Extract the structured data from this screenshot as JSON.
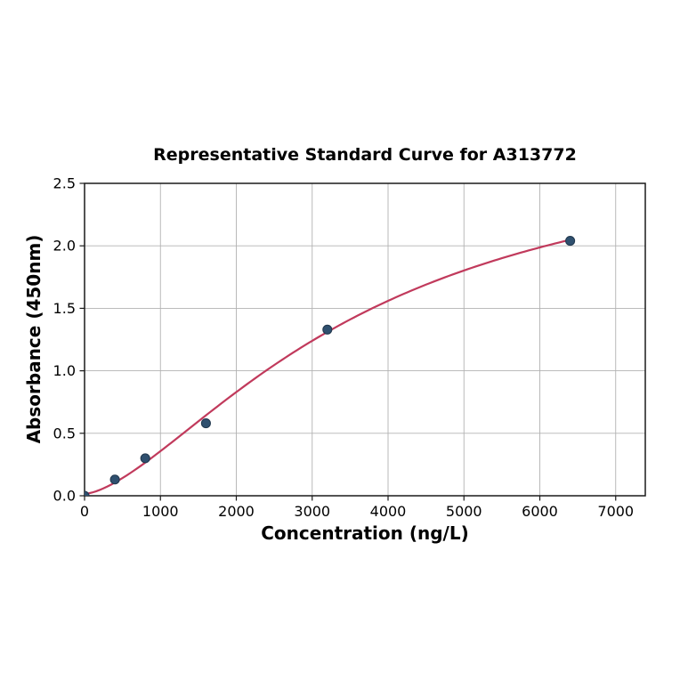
{
  "chart_data": {
    "type": "scatter",
    "title": "Representative Standard Curve for A313772",
    "xlabel": "Concentration (ng/L)",
    "ylabel": "Absorbance (450nm)",
    "points": {
      "x": [
        0,
        400,
        800,
        1600,
        3200,
        6400
      ],
      "y": [
        0.0,
        0.13,
        0.3,
        0.58,
        1.33,
        2.04
      ]
    },
    "fit_curve": {
      "model": "4PL",
      "a": 0.015,
      "b": 1.55,
      "c": 3650,
      "d": 2.9,
      "x_start": 0,
      "x_end": 6400
    },
    "xlim": [
      0,
      7390
    ],
    "ylim": [
      0,
      2.5
    ],
    "xticks": [
      0,
      1000,
      2000,
      3000,
      4000,
      5000,
      6000,
      7000
    ],
    "xtick_labels": [
      "0",
      "1000",
      "2000",
      "3000",
      "4000",
      "5000",
      "6000",
      "7000"
    ],
    "yticks": [
      0.0,
      0.5,
      1.0,
      1.5,
      2.0,
      2.5
    ],
    "ytick_labels": [
      "0.0",
      "0.5",
      "1.0",
      "1.5",
      "2.0",
      "2.5"
    ],
    "grid": true,
    "legend": "none",
    "colors": {
      "curve": "#c13a5c",
      "point_fill": "#2f506f",
      "point_edge": "#22394f",
      "grid": "#b2b2b2",
      "axis": "#1a1a1a",
      "text": "#000000",
      "background": "#ffffff"
    }
  }
}
